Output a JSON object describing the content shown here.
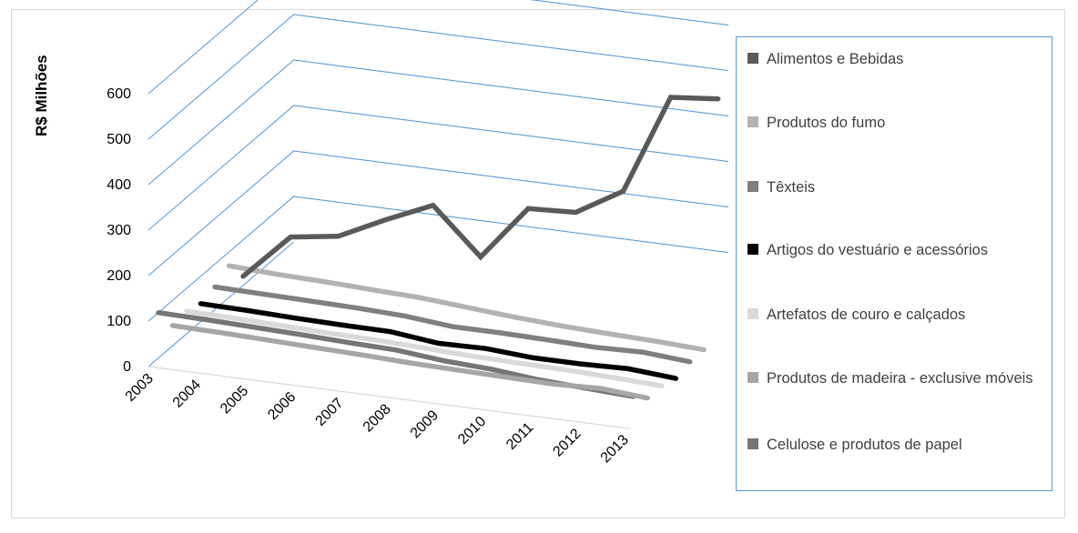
{
  "chart_data": {
    "type": "line",
    "view": "3d-depth-lines",
    "ylabel": "R$ Milhões",
    "ylim": [
      0,
      600
    ],
    "yticks": [
      "0",
      "100",
      "200",
      "300",
      "400",
      "500",
      "600"
    ],
    "categories": [
      "2003",
      "2004",
      "2005",
      "2006",
      "2007",
      "2008",
      "2009",
      "2010",
      "2011",
      "2012",
      "2013"
    ],
    "gridlines": true,
    "legend_position": "right",
    "series": [
      {
        "name": "Alimentos e Bebidas",
        "color": "#595959",
        "values": [
          20,
          120,
          135,
          185,
          230,
          130,
          250,
          255,
          315,
          535,
          545
        ]
      },
      {
        "name": "Produtos do fumo",
        "color": "#b2b2b2",
        "values": [
          70,
          65,
          62,
          58,
          54,
          46,
          38,
          32,
          28,
          25,
          20
        ]
      },
      {
        "name": "Têxteis",
        "color": "#7f7f7f",
        "values": [
          50,
          48,
          46,
          44,
          40,
          30,
          30,
          28,
          25,
          28,
          20
        ]
      },
      {
        "name": "Artigos do vestuário e acessórios",
        "color": "#000000",
        "values": [
          40,
          38,
          35,
          33,
          32,
          20,
          22,
          15,
          15,
          18,
          10
        ]
      },
      {
        "name": "Artefatos de couro e calçados",
        "color": "#d9d9d9",
        "values": [
          50,
          48,
          45,
          42,
          40,
          36,
          32,
          30,
          28,
          25,
          20
        ]
      },
      {
        "name": "Produtos de madeira - exclusive móveis",
        "color": "#a6a6a6",
        "values": [
          45,
          43,
          40,
          37,
          34,
          30,
          28,
          26,
          24,
          28,
          20
        ]
      },
      {
        "name": "Celulose e produtos de papel",
        "color": "#767676",
        "values": [
          100,
          98,
          95,
          92,
          88,
          85,
          75,
          70,
          60,
          55,
          50
        ]
      }
    ]
  }
}
